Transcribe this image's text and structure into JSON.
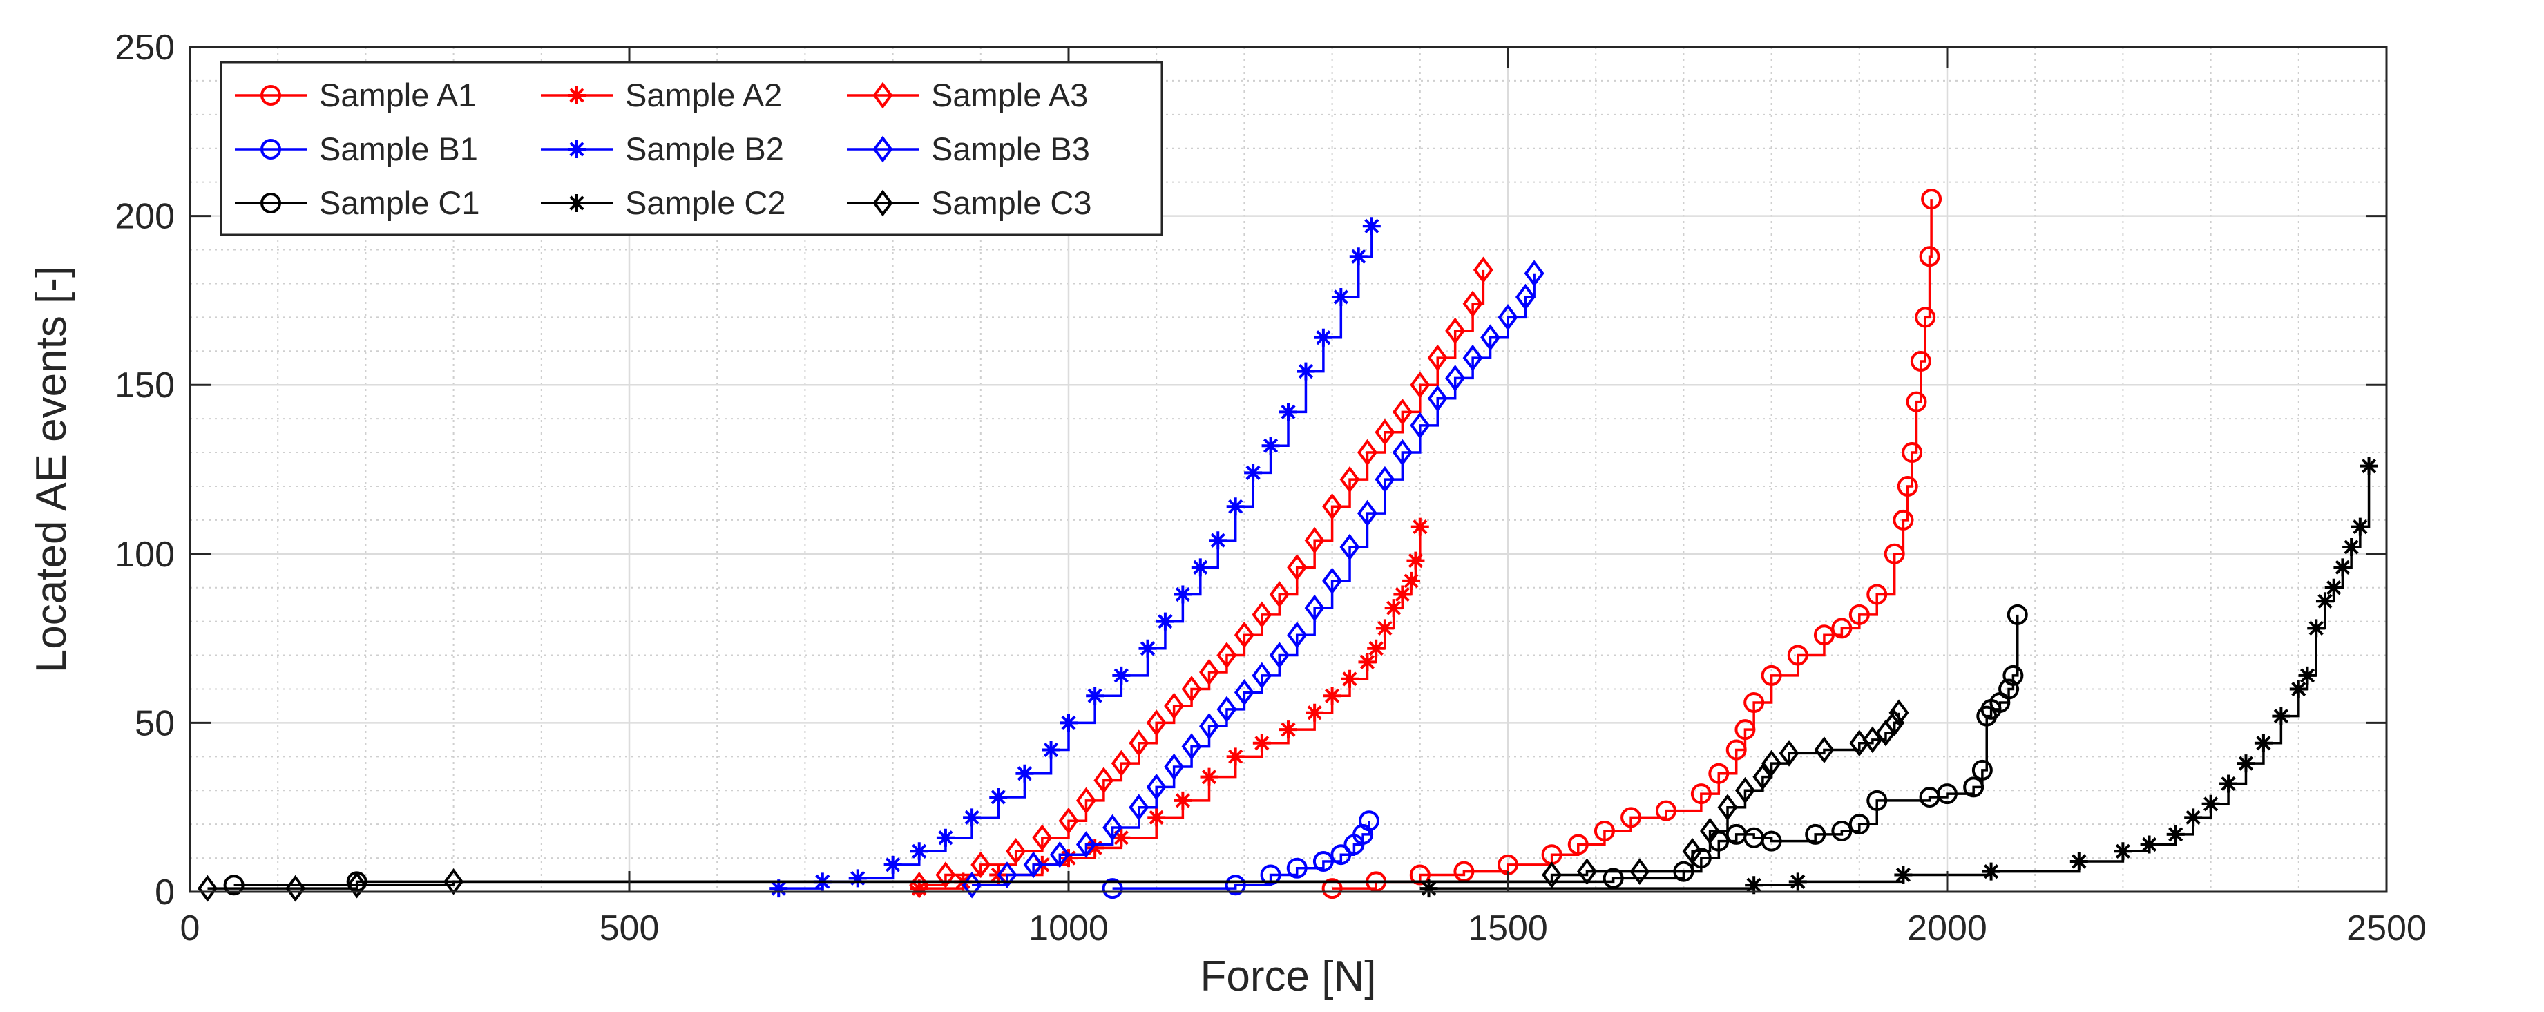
{
  "chart_data": {
    "type": "line",
    "title": "",
    "xlabel": "Force [N]",
    "ylabel": "Located AE events [-]",
    "xlim": [
      0,
      2500
    ],
    "ylim": [
      0,
      250
    ],
    "xticks": [
      0,
      500,
      1000,
      1500,
      2000,
      2500
    ],
    "yticks": [
      0,
      50,
      100,
      150,
      200,
      250
    ],
    "x_tick_labels": [
      "0",
      "500",
      "1000",
      "1500",
      "2000",
      "2500"
    ],
    "y_tick_labels": [
      "0",
      "50",
      "100",
      "150",
      "200",
      "250"
    ],
    "grid": true,
    "minor_grid": true,
    "legend_position": "top-left",
    "series": [
      {
        "name": "Sample A1",
        "color": "#ff0000",
        "marker": "circle",
        "x": [
          1300,
          1350,
          1400,
          1450,
          1500,
          1550,
          1580,
          1610,
          1640,
          1680,
          1720,
          1740,
          1760,
          1770,
          1780,
          1800,
          1830,
          1860,
          1880,
          1900,
          1920,
          1940,
          1950,
          1955,
          1960,
          1965,
          1970,
          1975,
          1980,
          1982
        ],
        "y": [
          1,
          3,
          5,
          6,
          8,
          11,
          14,
          18,
          22,
          24,
          29,
          35,
          42,
          48,
          56,
          64,
          70,
          76,
          78,
          82,
          88,
          100,
          110,
          120,
          130,
          145,
          157,
          170,
          188,
          205
        ]
      },
      {
        "name": "Sample B1",
        "color": "#0000ff",
        "marker": "circle",
        "x": [
          1050,
          1190,
          1230,
          1260,
          1290,
          1310,
          1325,
          1335,
          1342
        ],
        "y": [
          1,
          2,
          5,
          7,
          9,
          11,
          14,
          17,
          21
        ]
      },
      {
        "name": "Sample C1",
        "color": "#000000",
        "marker": "circle",
        "x": [
          50,
          190,
          1620,
          1700,
          1720,
          1740,
          1760,
          1780,
          1800,
          1850,
          1880,
          1900,
          1920,
          1980,
          2000,
          2030,
          2040,
          2045,
          2050,
          2060,
          2070,
          2075,
          2080
        ],
        "y": [
          2,
          3,
          4,
          6,
          10,
          15,
          17,
          16,
          15,
          17,
          18,
          20,
          27,
          28,
          29,
          31,
          36,
          52,
          54,
          56,
          60,
          64,
          82
        ]
      },
      {
        "name": "Sample A2",
        "color": "#ff0000",
        "marker": "star",
        "x": [
          830,
          880,
          920,
          970,
          1000,
          1030,
          1060,
          1100,
          1130,
          1160,
          1190,
          1220,
          1250,
          1280,
          1300,
          1320,
          1340,
          1350,
          1360,
          1370,
          1380,
          1390,
          1395,
          1400
        ],
        "y": [
          1,
          3,
          5,
          8,
          10,
          13,
          16,
          22,
          27,
          34,
          40,
          44,
          48,
          53,
          58,
          63,
          68,
          72,
          78,
          84,
          88,
          92,
          98,
          108
        ]
      },
      {
        "name": "Sample B2",
        "color": "#0000ff",
        "marker": "star",
        "x": [
          670,
          720,
          760,
          800,
          830,
          860,
          890,
          920,
          950,
          980,
          1000,
          1030,
          1060,
          1090,
          1110,
          1130,
          1150,
          1170,
          1190,
          1210,
          1230,
          1250,
          1270,
          1290,
          1310,
          1330,
          1345
        ],
        "y": [
          1,
          3,
          4,
          8,
          12,
          16,
          22,
          28,
          35,
          42,
          50,
          58,
          64,
          72,
          80,
          88,
          96,
          104,
          114,
          124,
          132,
          142,
          154,
          164,
          176,
          188,
          197
        ]
      },
      {
        "name": "Sample C2",
        "color": "#000000",
        "marker": "star",
        "x": [
          1410,
          1780,
          1830,
          1950,
          2050,
          2150,
          2200,
          2230,
          2260,
          2280,
          2300,
          2320,
          2340,
          2360,
          2380,
          2400,
          2410,
          2420,
          2430,
          2440,
          2450,
          2460,
          2470,
          2480
        ],
        "y": [
          1,
          2,
          3,
          5,
          6,
          9,
          12,
          14,
          17,
          22,
          26,
          32,
          38,
          44,
          52,
          60,
          64,
          78,
          86,
          90,
          96,
          102,
          108,
          126
        ]
      },
      {
        "name": "Sample A3",
        "color": "#ff0000",
        "marker": "diamond",
        "x": [
          830,
          860,
          900,
          940,
          970,
          1000,
          1020,
          1040,
          1060,
          1080,
          1100,
          1120,
          1140,
          1160,
          1180,
          1200,
          1220,
          1240,
          1260,
          1280,
          1300,
          1320,
          1340,
          1360,
          1380,
          1400,
          1420,
          1440,
          1460,
          1472
        ],
        "y": [
          2,
          5,
          8,
          12,
          16,
          21,
          27,
          33,
          38,
          44,
          50,
          55,
          60,
          65,
          70,
          76,
          82,
          88,
          96,
          104,
          114,
          122,
          130,
          136,
          142,
          150,
          158,
          166,
          174,
          184
        ]
      },
      {
        "name": "Sample B3",
        "color": "#0000ff",
        "marker": "diamond",
        "x": [
          890,
          930,
          960,
          990,
          1020,
          1050,
          1080,
          1100,
          1120,
          1140,
          1160,
          1180,
          1200,
          1220,
          1240,
          1260,
          1280,
          1300,
          1320,
          1340,
          1360,
          1380,
          1400,
          1420,
          1440,
          1460,
          1480,
          1500,
          1520,
          1530
        ],
        "y": [
          2,
          5,
          8,
          11,
          14,
          19,
          25,
          31,
          37,
          43,
          49,
          54,
          59,
          64,
          70,
          76,
          84,
          92,
          102,
          112,
          122,
          130,
          138,
          146,
          152,
          158,
          164,
          170,
          176,
          183
        ]
      },
      {
        "name": "Sample C3",
        "color": "#000000",
        "marker": "diamond",
        "x": [
          20,
          120,
          190,
          300,
          1550,
          1590,
          1650,
          1710,
          1730,
          1750,
          1770,
          1790,
          1800,
          1820,
          1860,
          1900,
          1915,
          1930,
          1940,
          1945
        ],
        "y": [
          1,
          1,
          2,
          3,
          5,
          6,
          6,
          12,
          18,
          25,
          30,
          34,
          38,
          41,
          42,
          44,
          45,
          47,
          50,
          53
        ]
      }
    ]
  }
}
